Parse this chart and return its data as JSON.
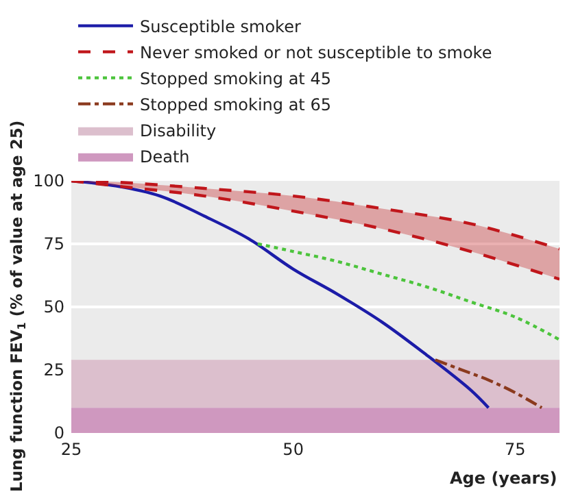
{
  "chart_data": {
    "type": "line",
    "xlabel": "Age (years)",
    "ylabel": "Lung function FEV$_{1}$ (% of value at age 25)",
    "series": [
      {
        "name": "Susceptible smoker",
        "color": "#1c1ca8",
        "line_style": "solid",
        "x": [
          25,
          30,
          35,
          40,
          45,
          50,
          55,
          60,
          65,
          70,
          72
        ],
        "values": [
          100,
          98,
          94,
          86,
          77,
          65,
          55,
          44,
          31,
          17,
          10
        ]
      },
      {
        "name": "Never smoked or not susceptible to smoke",
        "color": "#c0161b",
        "line_style": "dashed",
        "x": [
          25,
          30,
          40,
          50,
          60,
          70,
          80
        ],
        "values": [
          100,
          99.5,
          97,
          94,
          89,
          83,
          73
        ],
        "upper": [
          100,
          99.5,
          97,
          94,
          89,
          83,
          73
        ],
        "lower": [
          100,
          98,
          94,
          88,
          81,
          72,
          61
        ]
      },
      {
        "color": "#c0161b",
        "line_style": "dashed",
        "x": [
          25,
          30,
          40,
          50,
          60,
          70,
          80
        ],
        "values": [
          100,
          98,
          94,
          88,
          81,
          72,
          61
        ]
      },
      {
        "name": "Stopped smoking at 45",
        "color": "#4cc43c",
        "line_style": "dotted",
        "x": [
          46,
          50,
          55,
          60,
          65,
          70,
          75,
          80
        ],
        "values": [
          75,
          72,
          68,
          63,
          58,
          52,
          46,
          37
        ]
      },
      {
        "name": "Stopped smoking at 65",
        "color": "#8b3a1e",
        "line_style": "dashdot",
        "x": [
          66,
          69,
          72,
          75,
          78
        ],
        "values": [
          29,
          25,
          21,
          16,
          10
        ]
      }
    ],
    "bands": [
      {
        "axis": "y",
        "from": 10,
        "to": 29,
        "label": "Disability",
        "color": "#dcbfcd"
      },
      {
        "axis": "y",
        "from": 0,
        "to": 10,
        "label": "Death",
        "color": "#cf98bf"
      }
    ],
    "xlim": [
      25,
      80
    ],
    "xticks": [
      25,
      50,
      75
    ],
    "ylim": [
      0,
      100
    ],
    "yticks": [
      0,
      25,
      50,
      75,
      100
    ],
    "grid": "y",
    "legend": "top left",
    "marker": "none"
  }
}
